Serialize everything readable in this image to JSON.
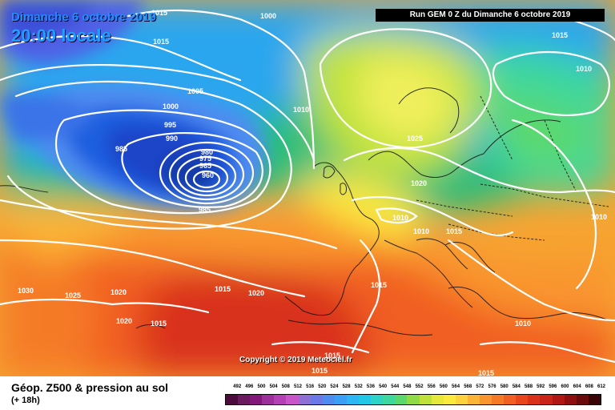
{
  "header": {
    "date": "Dimanche 6 octobre 2019",
    "time": "20:00 locale",
    "run": "Run GEM 0 Z du Dimanche 6 octobre 2019"
  },
  "copyright": "Copyright © 2019 Meteociel.fr",
  "footer": {
    "title": "Géop. Z500 & pression au sol",
    "subtitle": "(+ 18h)"
  },
  "legend": {
    "values": [
      "492",
      "496",
      "500",
      "504",
      "508",
      "512",
      "516",
      "520",
      "524",
      "528",
      "532",
      "536",
      "540",
      "544",
      "548",
      "552",
      "556",
      "560",
      "564",
      "568",
      "572",
      "576",
      "580",
      "584",
      "588",
      "592",
      "596",
      "600",
      "604",
      "608",
      "612"
    ],
    "colors": [
      "#4b0b3b",
      "#6a1b5f",
      "#84187a",
      "#9c2f9a",
      "#b53fb4",
      "#c854c8",
      "#8e6fd6",
      "#6b79e6",
      "#4f8cf0",
      "#3aa0f5",
      "#2cb6f4",
      "#22c7e8",
      "#2ed3c8",
      "#3ed79e",
      "#5bd86d",
      "#8fdb45",
      "#bfe23a",
      "#e6e93a",
      "#fbe93f",
      "#fdd23c",
      "#fcb436",
      "#f9952e",
      "#f57a27",
      "#f15f22",
      "#e8451d",
      "#d9311a",
      "#c92417",
      "#b01714",
      "#8e0f10",
      "#6b0a0c",
      "#3a0306"
    ]
  },
  "map_labels": [
    "1015",
    "1000",
    "1015",
    "1005",
    "1000",
    "995",
    "990",
    "985",
    "980",
    "975",
    "965",
    "960",
    "985",
    "1010",
    "1015",
    "1010",
    "1025",
    "1020",
    "1010",
    "1010",
    "1015",
    "1010",
    "1015",
    "1030",
    "1025",
    "1020",
    "1020",
    "1015",
    "1015",
    "1020",
    "1010",
    "1015",
    "1015",
    "1015"
  ]
}
